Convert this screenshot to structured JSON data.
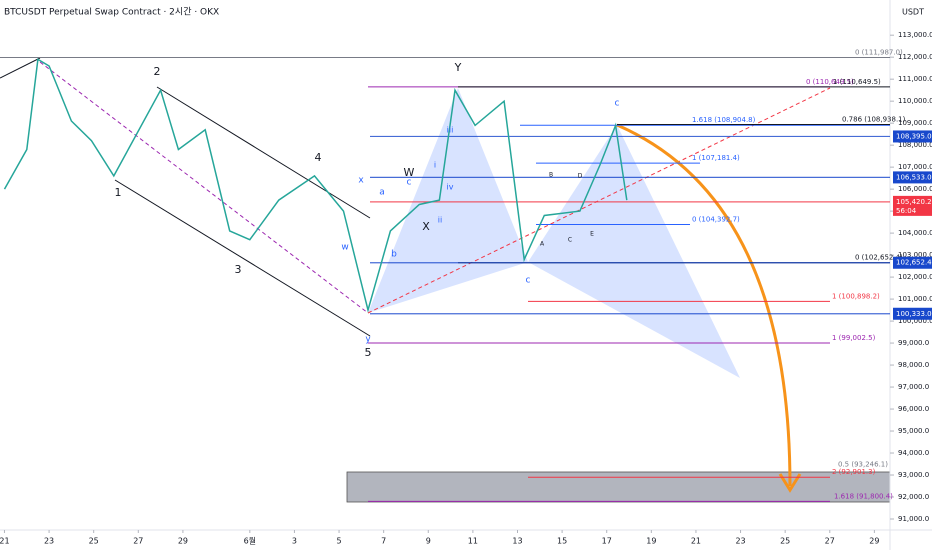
{
  "chart_data": {
    "type": "line",
    "title": "BTCUSDT Perpetual Swap Contract · 2시간 · OKX",
    "y_axis_label": "USDT",
    "xlim": [
      -0.2,
      39.7
    ],
    "ylim": [
      90500,
      114600
    ],
    "xticks": [
      {
        "value": 0,
        "label": "21"
      },
      {
        "value": 2,
        "label": "23"
      },
      {
        "value": 4,
        "label": "25"
      },
      {
        "value": 6,
        "label": "27"
      },
      {
        "value": 8,
        "label": "29"
      },
      {
        "value": 11,
        "label": "6월"
      },
      {
        "value": 13,
        "label": "3"
      },
      {
        "value": 15,
        "label": "5"
      },
      {
        "value": 17,
        "label": "7"
      },
      {
        "value": 19,
        "label": "9"
      },
      {
        "value": 21,
        "label": "11"
      },
      {
        "value": 23,
        "label": "13"
      },
      {
        "value": 25,
        "label": "15"
      },
      {
        "value": 27,
        "label": "17"
      },
      {
        "value": 29,
        "label": "19"
      },
      {
        "value": 31,
        "label": "21"
      },
      {
        "value": 33,
        "label": "23"
      },
      {
        "value": 35,
        "label": "25"
      },
      {
        "value": 37,
        "label": "27"
      },
      {
        "value": 39,
        "label": "29"
      }
    ],
    "yticks": [
      {
        "value": 91000,
        "label": "91,000.0"
      },
      {
        "value": 92000,
        "label": "92,000.0"
      },
      {
        "value": 93000,
        "label": "93,000.0"
      },
      {
        "value": 94000,
        "label": "94,000.0"
      },
      {
        "value": 95000,
        "label": "95,000.0"
      },
      {
        "value": 96000,
        "label": "96,000.0"
      },
      {
        "value": 97000,
        "label": "97,000.0"
      },
      {
        "value": 98000,
        "label": "98,000.0"
      },
      {
        "value": 99000,
        "label": "99,000.0"
      },
      {
        "value": 100000,
        "label": "100,000.0"
      },
      {
        "value": 101000,
        "label": "101,000.0"
      },
      {
        "value": 102000,
        "label": "102,000.0"
      },
      {
        "value": 103000,
        "label": "103,000.0"
      },
      {
        "value": 104000,
        "label": "104,000.0"
      },
      {
        "value": 105000,
        "label": "105,000.0"
      },
      {
        "value": 106000,
        "label": "106,000.0"
      },
      {
        "value": 107000,
        "label": "107,000.0"
      },
      {
        "value": 108000,
        "label": "108,000.0"
      },
      {
        "value": 109000,
        "label": "109,000.0"
      },
      {
        "value": 110000,
        "label": "110,000.0"
      },
      {
        "value": 111000,
        "label": "111,000.0"
      },
      {
        "value": 112000,
        "label": "112,000.0"
      },
      {
        "value": 113000,
        "label": "113,000.0"
      }
    ],
    "series": [
      {
        "name": "BTCUSDT",
        "color": "#26a69a",
        "x": [
          0,
          1,
          1.5,
          2,
          3,
          3.9,
          4.9,
          7,
          7.8,
          9,
          10.1,
          11,
          12.3,
          13.9,
          15.2,
          16.3,
          17.3,
          18.6,
          19.5,
          20.2,
          21.1,
          22.4,
          23.3,
          24.2,
          25.8,
          26.7,
          27.4,
          27.9
        ],
        "values": [
          106000,
          107800,
          111900,
          111600,
          109100,
          108200,
          106600,
          110500,
          107800,
          108700,
          104100,
          103700,
          105500,
          106600,
          105000,
          100500,
          104100,
          105300,
          105500,
          110500,
          108900,
          110000,
          102800,
          104800,
          105000,
          107100,
          108900,
          105500
        ]
      }
    ],
    "levels": [
      {
        "value": 111987,
        "label": "0 (111,987.0)",
        "color": "#787b86"
      },
      {
        "value": 110649.5,
        "label": "0 (110,649.5)",
        "color": "#9c27b0"
      },
      {
        "value": 110649.5,
        "label": "1 (110,649.5)",
        "color": "#131722"
      },
      {
        "value": 108904.8,
        "label": "1.618 (108,904.8)",
        "color": "#2962ff"
      },
      {
        "value": 108938.1,
        "label": "0.786 (108,938.1)",
        "color": "#131722"
      },
      {
        "value": 107181.4,
        "label": "1 (107,181.4)",
        "color": "#2962ff"
      },
      {
        "value": 104392.7,
        "label": "0 (104,392.7)",
        "color": "#2962ff"
      },
      {
        "value": 102652.4,
        "label": "0 (102,652.4)",
        "color": "#131722"
      },
      {
        "value": 100898.2,
        "label": "1 (100,898.2)",
        "color": "#f23645"
      },
      {
        "value": 99002.5,
        "label": "1 (99,002.5)",
        "color": "#9c27b0"
      },
      {
        "value": 93246.1,
        "label": "0.5 (93,246.1)",
        "color": "#787b86"
      },
      {
        "value": 92901.3,
        "label": "2 (92,901.3)",
        "color": "#f23645"
      },
      {
        "value": 91800.4,
        "label": "1.618 (91,800.4)",
        "color": "#9c27b0"
      }
    ],
    "price_tags": [
      {
        "value": 108395,
        "label": "108,395.0",
        "color": "#1848cc"
      },
      {
        "value": 106533,
        "label": "106,533.0",
        "color": "#1848cc"
      },
      {
        "value": 105420.2,
        "label": "105,420.2",
        "color": "#f23645"
      },
      {
        "value": 102652.4,
        "label": "102,652.4",
        "color": "#1848cc"
      },
      {
        "value": 100333,
        "label": "100,333.0",
        "color": "#1848cc"
      }
    ],
    "countdown": "56:04",
    "annotations": [
      "1",
      "2",
      "3",
      "4",
      "5",
      "W",
      "X",
      "Y",
      "c",
      "c",
      "a",
      "b",
      "c",
      "x",
      "w",
      "y",
      "iii",
      "iv",
      "ii",
      "i",
      "A",
      "B",
      "C",
      "D",
      "E"
    ]
  }
}
